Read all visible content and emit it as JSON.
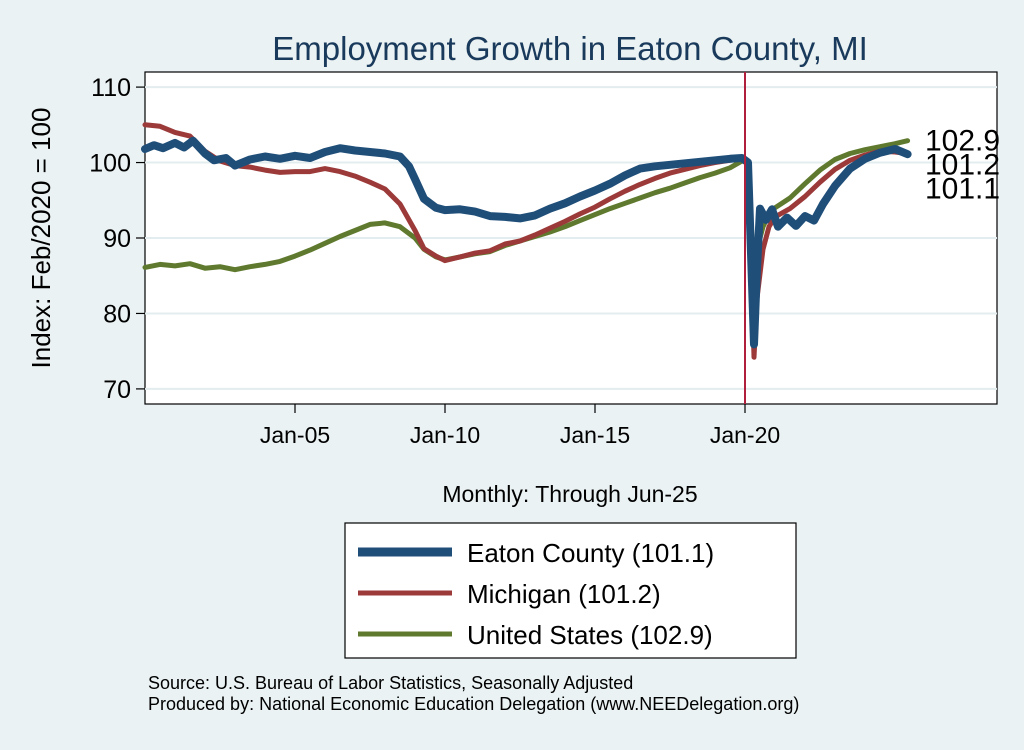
{
  "chart_data": {
    "type": "line",
    "title": "Employment Growth in Eaton  County, MI",
    "ylabel": "Index: Feb/2020 = 100",
    "xlabel": "Monthly: Through Jun-25",
    "ylim": [
      68,
      112
    ],
    "xlim": [
      2000.0,
      2028.4
    ],
    "yticks": [
      70,
      80,
      90,
      100,
      110
    ],
    "xticks": [
      {
        "label": "Jan-05",
        "value": 2005.0
      },
      {
        "label": "Jan-10",
        "value": 2010.0
      },
      {
        "label": "Jan-15",
        "value": 2015.0
      },
      {
        "label": "Jan-20",
        "value": 2020.0
      }
    ],
    "vline": {
      "x": 2020.0,
      "color": "#b0203c"
    },
    "grid": true,
    "series": [
      {
        "name": "United States",
        "legend_label": "United States (102.9)",
        "color": "#5f7a2e",
        "end_label": "102.9",
        "points": [
          [
            2000.0,
            86.1
          ],
          [
            2000.5,
            86.5
          ],
          [
            2001.0,
            86.3
          ],
          [
            2001.5,
            86.6
          ],
          [
            2002.0,
            86.0
          ],
          [
            2002.5,
            86.2
          ],
          [
            2003.0,
            85.8
          ],
          [
            2003.5,
            86.2
          ],
          [
            2004.0,
            86.5
          ],
          [
            2004.5,
            86.9
          ],
          [
            2005.0,
            87.6
          ],
          [
            2005.5,
            88.4
          ],
          [
            2006.0,
            89.3
          ],
          [
            2006.5,
            90.2
          ],
          [
            2007.0,
            91.0
          ],
          [
            2007.5,
            91.8
          ],
          [
            2008.0,
            92.0
          ],
          [
            2008.5,
            91.5
          ],
          [
            2009.0,
            90.0
          ],
          [
            2009.3,
            88.5
          ],
          [
            2009.7,
            87.5
          ],
          [
            2010.0,
            87.1
          ],
          [
            2010.5,
            87.5
          ],
          [
            2011.0,
            87.9
          ],
          [
            2011.5,
            88.2
          ],
          [
            2012.0,
            89.0
          ],
          [
            2012.5,
            89.6
          ],
          [
            2013.0,
            90.2
          ],
          [
            2013.5,
            90.8
          ],
          [
            2014.0,
            91.5
          ],
          [
            2014.5,
            92.3
          ],
          [
            2015.0,
            93.1
          ],
          [
            2015.5,
            93.9
          ],
          [
            2016.0,
            94.6
          ],
          [
            2016.5,
            95.3
          ],
          [
            2017.0,
            96.0
          ],
          [
            2017.5,
            96.6
          ],
          [
            2018.0,
            97.3
          ],
          [
            2018.5,
            98.0
          ],
          [
            2019.0,
            98.6
          ],
          [
            2019.5,
            99.3
          ],
          [
            2019.9,
            100.2
          ],
          [
            2020.1,
            100.0
          ],
          [
            2020.2,
            92.0
          ],
          [
            2020.3,
            84.9
          ],
          [
            2020.4,
            88.5
          ],
          [
            2020.6,
            91.5
          ],
          [
            2020.8,
            93.2
          ],
          [
            2021.0,
            94.0
          ],
          [
            2021.5,
            95.3
          ],
          [
            2022.0,
            97.2
          ],
          [
            2022.5,
            99.0
          ],
          [
            2023.0,
            100.4
          ],
          [
            2023.5,
            101.2
          ],
          [
            2024.0,
            101.7
          ],
          [
            2024.5,
            102.1
          ],
          [
            2025.0,
            102.5
          ],
          [
            2025.42,
            102.9
          ]
        ]
      },
      {
        "name": "Michigan",
        "legend_label": "Michigan (101.2)",
        "color": "#9c3a3a",
        "end_label": "101.2",
        "points": [
          [
            2000.0,
            105.0
          ],
          [
            2000.5,
            104.8
          ],
          [
            2001.0,
            104.0
          ],
          [
            2001.5,
            103.5
          ],
          [
            2002.0,
            101.5
          ],
          [
            2002.5,
            100.2
          ],
          [
            2003.0,
            99.6
          ],
          [
            2003.5,
            99.4
          ],
          [
            2004.0,
            99.0
          ],
          [
            2004.5,
            98.7
          ],
          [
            2005.0,
            98.8
          ],
          [
            2005.5,
            98.8
          ],
          [
            2006.0,
            99.2
          ],
          [
            2006.5,
            98.8
          ],
          [
            2007.0,
            98.2
          ],
          [
            2007.5,
            97.4
          ],
          [
            2008.0,
            96.5
          ],
          [
            2008.5,
            94.5
          ],
          [
            2009.0,
            91.0
          ],
          [
            2009.3,
            88.6
          ],
          [
            2009.7,
            87.6
          ],
          [
            2010.0,
            87.0
          ],
          [
            2010.5,
            87.5
          ],
          [
            2011.0,
            88.0
          ],
          [
            2011.5,
            88.3
          ],
          [
            2012.0,
            89.2
          ],
          [
            2012.5,
            89.6
          ],
          [
            2013.0,
            90.4
          ],
          [
            2013.5,
            91.3
          ],
          [
            2014.0,
            92.2
          ],
          [
            2014.5,
            93.2
          ],
          [
            2015.0,
            94.1
          ],
          [
            2015.5,
            95.2
          ],
          [
            2016.0,
            96.2
          ],
          [
            2016.5,
            97.1
          ],
          [
            2017.0,
            97.9
          ],
          [
            2017.5,
            98.6
          ],
          [
            2018.0,
            99.1
          ],
          [
            2018.5,
            99.6
          ],
          [
            2019.0,
            100.0
          ],
          [
            2019.5,
            100.3
          ],
          [
            2019.9,
            100.5
          ],
          [
            2020.1,
            100.0
          ],
          [
            2020.2,
            88.0
          ],
          [
            2020.3,
            74.2
          ],
          [
            2020.4,
            82.0
          ],
          [
            2020.6,
            88.5
          ],
          [
            2020.8,
            91.5
          ],
          [
            2021.0,
            92.8
          ],
          [
            2021.5,
            93.9
          ],
          [
            2022.0,
            95.5
          ],
          [
            2022.5,
            97.4
          ],
          [
            2023.0,
            99.1
          ],
          [
            2023.5,
            100.3
          ],
          [
            2024.0,
            101.0
          ],
          [
            2024.5,
            101.5
          ],
          [
            2025.0,
            101.4
          ],
          [
            2025.42,
            101.2
          ]
        ]
      },
      {
        "name": "Eaton  County",
        "legend_label": "Eaton  County (101.1)",
        "color": "#1f4e79",
        "end_label": "101.1",
        "points": [
          [
            2000.0,
            101.8
          ],
          [
            2000.3,
            102.3
          ],
          [
            2000.6,
            101.9
          ],
          [
            2001.0,
            102.6
          ],
          [
            2001.3,
            102.0
          ],
          [
            2001.6,
            102.9
          ],
          [
            2002.0,
            101.2
          ],
          [
            2002.3,
            100.3
          ],
          [
            2002.7,
            100.6
          ],
          [
            2003.0,
            99.6
          ],
          [
            2003.5,
            100.4
          ],
          [
            2004.0,
            100.8
          ],
          [
            2004.5,
            100.5
          ],
          [
            2005.0,
            100.9
          ],
          [
            2005.5,
            100.6
          ],
          [
            2006.0,
            101.4
          ],
          [
            2006.5,
            101.9
          ],
          [
            2007.0,
            101.6
          ],
          [
            2007.5,
            101.4
          ],
          [
            2008.0,
            101.2
          ],
          [
            2008.5,
            100.8
          ],
          [
            2008.8,
            99.5
          ],
          [
            2009.0,
            97.8
          ],
          [
            2009.3,
            95.2
          ],
          [
            2009.7,
            94.0
          ],
          [
            2010.0,
            93.7
          ],
          [
            2010.5,
            93.8
          ],
          [
            2011.0,
            93.5
          ],
          [
            2011.5,
            92.9
          ],
          [
            2012.0,
            92.8
          ],
          [
            2012.5,
            92.6
          ],
          [
            2013.0,
            93.0
          ],
          [
            2013.5,
            93.9
          ],
          [
            2014.0,
            94.6
          ],
          [
            2014.5,
            95.5
          ],
          [
            2015.0,
            96.3
          ],
          [
            2015.5,
            97.2
          ],
          [
            2016.0,
            98.3
          ],
          [
            2016.5,
            99.2
          ],
          [
            2017.0,
            99.5
          ],
          [
            2017.5,
            99.7
          ],
          [
            2018.0,
            99.9
          ],
          [
            2018.5,
            100.1
          ],
          [
            2019.0,
            100.3
          ],
          [
            2019.5,
            100.5
          ],
          [
            2019.9,
            100.6
          ],
          [
            2020.1,
            100.0
          ],
          [
            2020.2,
            88.0
          ],
          [
            2020.3,
            75.9
          ],
          [
            2020.4,
            86.0
          ],
          [
            2020.5,
            93.9
          ],
          [
            2020.7,
            92.4
          ],
          [
            2020.9,
            93.8
          ],
          [
            2021.1,
            91.5
          ],
          [
            2021.4,
            92.7
          ],
          [
            2021.7,
            91.6
          ],
          [
            2022.0,
            92.9
          ],
          [
            2022.3,
            92.3
          ],
          [
            2022.6,
            94.5
          ],
          [
            2023.0,
            96.9
          ],
          [
            2023.5,
            99.2
          ],
          [
            2024.0,
            100.5
          ],
          [
            2024.5,
            101.3
          ],
          [
            2025.0,
            101.8
          ],
          [
            2025.42,
            101.1
          ]
        ]
      }
    ]
  },
  "legend": {
    "items": [
      {
        "label": "Eaton  County (101.1)",
        "color": "#1f4e79",
        "width": 9
      },
      {
        "label": "Michigan (101.2)",
        "color": "#9c3a3a",
        "width": 5
      },
      {
        "label": "United States (102.9)",
        "color": "#5f7a2e",
        "width": 5
      }
    ]
  },
  "footer": {
    "source": "Source: U.S. Bureau of Labor Statistics, Seasonally Adjusted",
    "produced": "Produced by: National Economic Education Delegation (www.NEEDelegation.org)"
  },
  "colors": {
    "background": "#eaf2f3",
    "plot_bg": "#ffffff",
    "title": "#1a3a5c",
    "grid": "#e3ecee",
    "vline": "#b0203c"
  }
}
